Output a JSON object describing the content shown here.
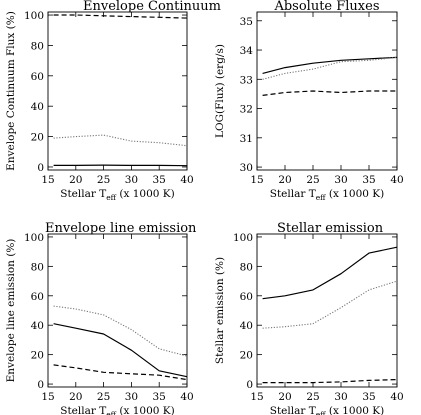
{
  "chart_data": [
    {
      "type": "line",
      "title": "Envelope Continuum",
      "xlabel": "Stellar T",
      "xlabel_sub": "eff",
      "xlabel_tail": " (x 1000 K)",
      "ylabel": "Envelope Continuum Flux  (%)",
      "xlim": [
        15,
        40
      ],
      "ylim": [
        -2,
        102
      ],
      "xticks": [
        15,
        20,
        25,
        30,
        35,
        40
      ],
      "yticks": [
        0,
        20,
        40,
        60,
        80,
        100
      ],
      "series": [
        {
          "style": "dashed",
          "color": "#000000",
          "x": [
            16,
            20,
            25,
            30,
            35,
            40
          ],
          "y": [
            100,
            100,
            99.5,
            99,
            98.5,
            98
          ]
        },
        {
          "style": "dotted",
          "color": "#777777",
          "x": [
            16,
            20,
            25,
            30,
            35,
            40
          ],
          "y": [
            19,
            20,
            21,
            17,
            16,
            14
          ]
        },
        {
          "style": "solid",
          "color": "#000000",
          "x": [
            16,
            20,
            25,
            30,
            35,
            40
          ],
          "y": [
            1,
            1,
            1.2,
            1,
            1,
            0.8
          ]
        }
      ]
    },
    {
      "type": "line",
      "title": "Absolute Fluxes",
      "xlabel": "Stellar T",
      "xlabel_sub": "eff",
      "xlabel_tail": " (x 1000 K)",
      "ylabel": "LOG(Flux)  (erg/s)",
      "xlim": [
        15,
        40
      ],
      "ylim": [
        29.9,
        35.3
      ],
      "xticks": [
        15,
        20,
        25,
        30,
        35,
        40
      ],
      "yticks": [
        30,
        31,
        32,
        33,
        34,
        35
      ],
      "series": [
        {
          "style": "solid",
          "color": "#000000",
          "x": [
            16,
            20,
            25,
            30,
            35,
            40
          ],
          "y": [
            33.2,
            33.4,
            33.55,
            33.65,
            33.7,
            33.75
          ]
        },
        {
          "style": "dotted",
          "color": "#777777",
          "x": [
            16,
            20,
            25,
            30,
            35,
            40
          ],
          "y": [
            33.0,
            33.2,
            33.35,
            33.6,
            33.65,
            33.75
          ]
        },
        {
          "style": "dashed",
          "color": "#000000",
          "x": [
            16,
            20,
            25,
            30,
            35,
            40
          ],
          "y": [
            32.45,
            32.55,
            32.6,
            32.55,
            32.6,
            32.6
          ]
        }
      ]
    },
    {
      "type": "line",
      "title": "Envelope line emission",
      "xlabel": "Stellar T",
      "xlabel_sub": "eff",
      "xlabel_tail": " (x 1000 K)",
      "ylabel": "Envelope line emission  (%)",
      "xlim": [
        15,
        40
      ],
      "ylim": [
        -2,
        102
      ],
      "xticks": [
        15,
        20,
        25,
        30,
        35,
        40
      ],
      "yticks": [
        0,
        20,
        40,
        60,
        80,
        100
      ],
      "series": [
        {
          "style": "dotted",
          "color": "#777777",
          "x": [
            16,
            20,
            25,
            30,
            35,
            40
          ],
          "y": [
            53,
            51,
            47,
            37,
            24,
            19
          ]
        },
        {
          "style": "solid",
          "color": "#000000",
          "x": [
            16,
            20,
            25,
            30,
            35,
            40
          ],
          "y": [
            41,
            38,
            34,
            23,
            9,
            5
          ]
        },
        {
          "style": "dashed",
          "color": "#000000",
          "x": [
            16,
            20,
            25,
            30,
            35,
            40
          ],
          "y": [
            13,
            11,
            8,
            7,
            6,
            3
          ]
        }
      ]
    },
    {
      "type": "line",
      "title": "Stellar emission",
      "xlabel": "Stellar T",
      "xlabel_sub": "eff",
      "xlabel_tail": " (x 1000 K)",
      "ylabel": "Stellar emission  (%)",
      "xlim": [
        15,
        40
      ],
      "ylim": [
        -2,
        102
      ],
      "xticks": [
        15,
        20,
        25,
        30,
        35,
        40
      ],
      "yticks": [
        0,
        20,
        40,
        60,
        80,
        100
      ],
      "series": [
        {
          "style": "solid",
          "color": "#000000",
          "x": [
            16,
            20,
            25,
            30,
            35,
            40
          ],
          "y": [
            58,
            60,
            64,
            75,
            89,
            93
          ]
        },
        {
          "style": "dotted",
          "color": "#777777",
          "x": [
            16,
            20,
            25,
            30,
            35,
            40
          ],
          "y": [
            38,
            39,
            41,
            52,
            64,
            70
          ]
        },
        {
          "style": "dashed",
          "color": "#000000",
          "x": [
            16,
            20,
            25,
            30,
            35,
            40
          ],
          "y": [
            1,
            1,
            1,
            1.5,
            2.5,
            3
          ]
        }
      ]
    }
  ]
}
